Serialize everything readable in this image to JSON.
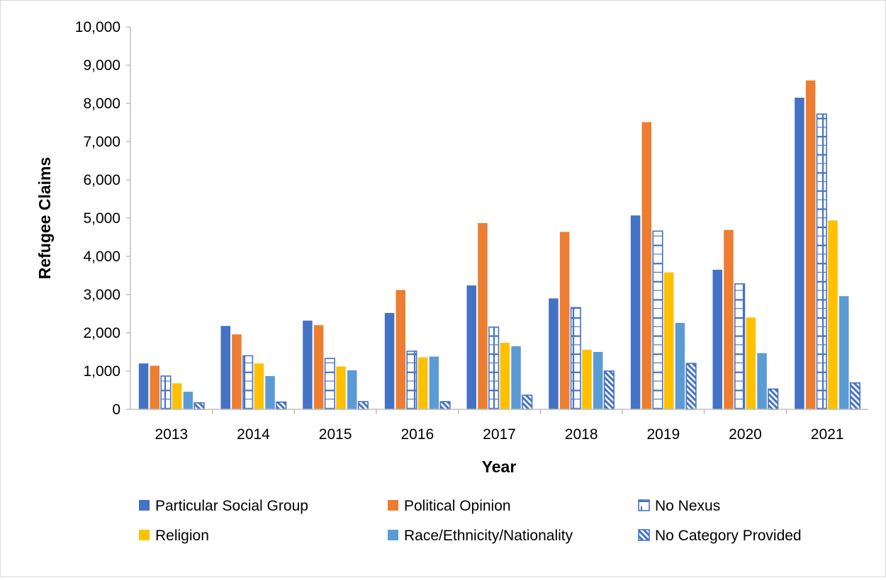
{
  "chart_data": {
    "type": "bar",
    "title": "",
    "xlabel": "Year",
    "ylabel": "Refugee Claims",
    "ylim": [
      0,
      10000
    ],
    "ytick_step": 1000,
    "yticks": [
      "0",
      "1,000",
      "2,000",
      "3,000",
      "4,000",
      "5,000",
      "6,000",
      "7,000",
      "8,000",
      "9,000",
      "10,000"
    ],
    "grid": false,
    "legend_position": "bottom",
    "categories": [
      "2013",
      "2014",
      "2015",
      "2016",
      "2017",
      "2018",
      "2019",
      "2020",
      "2021"
    ],
    "series": [
      {
        "name": "Particular Social Group",
        "color": "#4472c4",
        "fill": "solid",
        "values": [
          1200,
          2180,
          2320,
          2520,
          3240,
          2900,
          5070,
          3650,
          8150
        ]
      },
      {
        "name": "Political Opinion",
        "color": "#ed7d31",
        "fill": "solid",
        "values": [
          1140,
          1960,
          2200,
          3120,
          4870,
          4640,
          7510,
          4690,
          8600
        ]
      },
      {
        "name": "No Nexus",
        "color": "#4472c4",
        "fill": "horizontal-brick-pattern",
        "values": [
          870,
          1400,
          1330,
          1520,
          2150,
          2660,
          4660,
          3280,
          7720
        ]
      },
      {
        "name": "Religion",
        "color": "#ffc000",
        "fill": "solid",
        "values": [
          680,
          1200,
          1120,
          1360,
          1740,
          1560,
          3580,
          2400,
          4940
        ]
      },
      {
        "name": "Race/Ethnicity/Nationality",
        "color": "#5b9bd5",
        "fill": "solid",
        "values": [
          460,
          870,
          1020,
          1380,
          1650,
          1500,
          2260,
          1470,
          2960
        ]
      },
      {
        "name": "No Category Provided",
        "color": "#4472c4",
        "fill": "diagonal-pattern",
        "values": [
          170,
          190,
          200,
          200,
          370,
          1000,
          1200,
          530,
          690
        ]
      }
    ]
  }
}
